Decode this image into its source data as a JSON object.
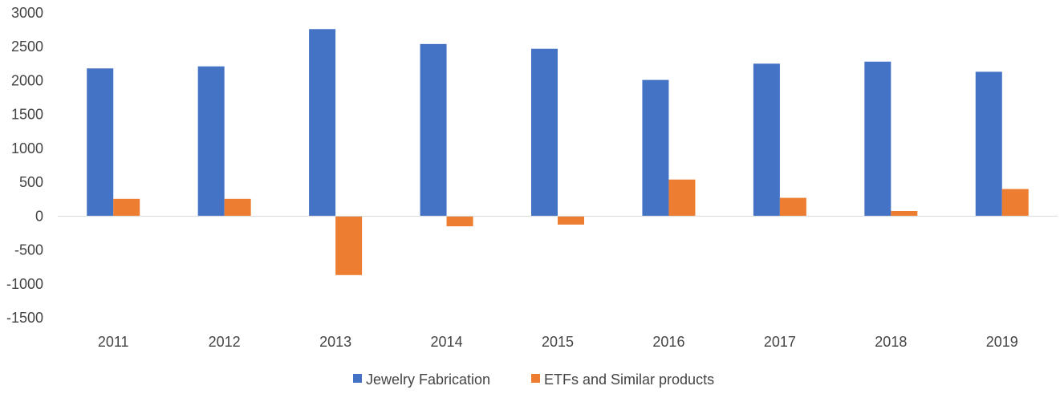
{
  "chart_data": {
    "type": "bar",
    "categories": [
      "2011",
      "2012",
      "2013",
      "2014",
      "2015",
      "2016",
      "2017",
      "2018",
      "2019"
    ],
    "series": [
      {
        "name": "Jewelry Fabrication",
        "color": "#4472C4",
        "values": [
          2180,
          2210,
          2760,
          2540,
          2470,
          2010,
          2250,
          2280,
          2130
        ]
      },
      {
        "name": "ETFs and Similar products",
        "color": "#ED7D31",
        "values": [
          255,
          255,
          -870,
          -150,
          -125,
          540,
          270,
          75,
          400
        ]
      }
    ],
    "ylim": [
      -1500,
      3000
    ],
    "yticks": [
      "3000",
      "2500",
      "2000",
      "1500",
      "1000",
      "500",
      "0",
      "-500",
      "-1000",
      "-1500"
    ],
    "grid": false,
    "legend": "bottom-center"
  }
}
